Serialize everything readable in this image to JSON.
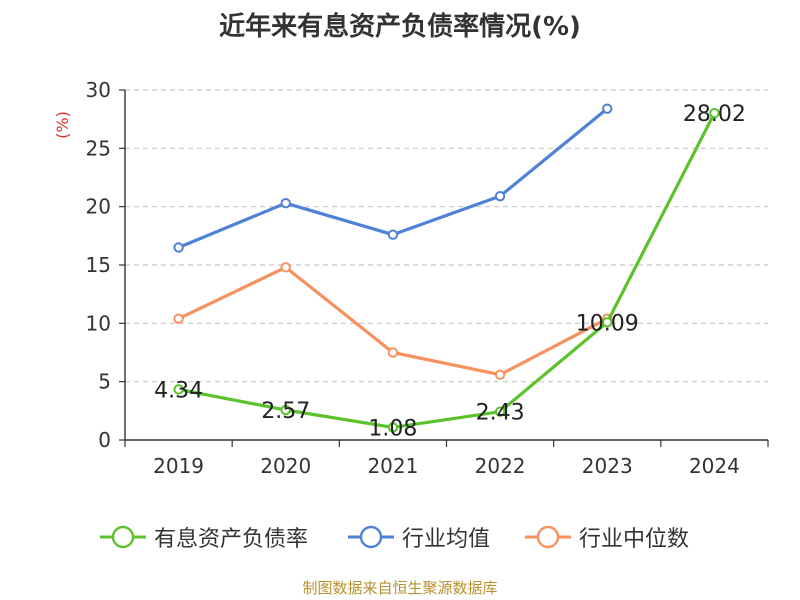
{
  "title": "近年来有息资产负债率情况(%)",
  "source": "制图数据来自恒生聚源数据库",
  "chart_data": {
    "type": "line",
    "title": "近年来有息资产负债率情况(%)",
    "ylabel": "(%)",
    "xlabel": "",
    "categories": [
      "2019",
      "2020",
      "2021",
      "2022",
      "2023",
      "2024"
    ],
    "ylim": [
      0,
      30
    ],
    "yticks": [
      0,
      5,
      10,
      15,
      20,
      25,
      30
    ],
    "grid": true,
    "legend_position": "bottom",
    "series": [
      {
        "name": "有息资产负债率",
        "color": "#5cc22c",
        "values": [
          4.34,
          2.57,
          1.08,
          2.43,
          10.09,
          28.02
        ],
        "labels": [
          "4.34",
          "2.57",
          "1.08",
          "2.43",
          "10.09",
          "28.02"
        ]
      },
      {
        "name": "行业均值",
        "color": "#4f81d6",
        "values": [
          16.5,
          20.3,
          17.6,
          20.9,
          28.4,
          null
        ]
      },
      {
        "name": "行业中位数",
        "color": "#f7915e",
        "values": [
          10.4,
          14.8,
          7.5,
          5.6,
          10.4,
          null
        ]
      }
    ]
  }
}
